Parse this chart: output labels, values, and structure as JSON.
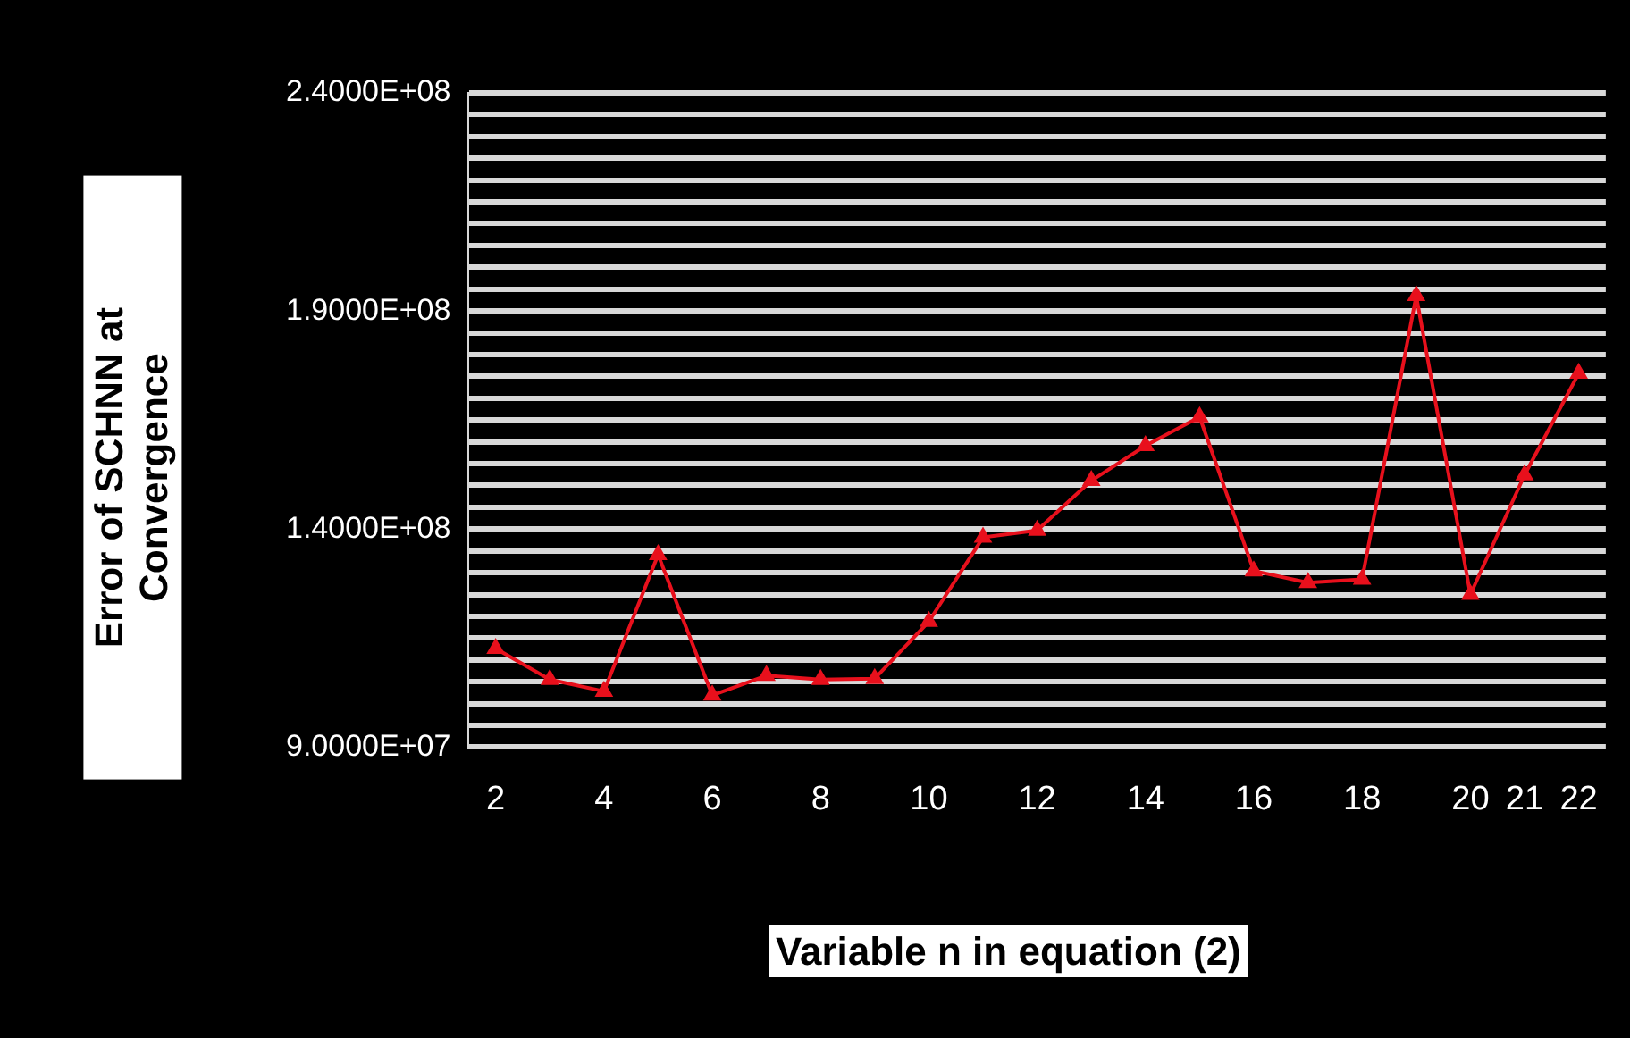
{
  "chart_data": {
    "type": "line",
    "xlabel": "Variable n in equation (2)",
    "ylabel": "Error of SCHNN at Convergence",
    "categories": [
      "2",
      null,
      "4",
      null,
      "6",
      null,
      "8",
      null,
      "10",
      null,
      "12",
      null,
      "14",
      null,
      "16",
      null,
      "18",
      null,
      "20",
      "21",
      "22"
    ],
    "series": [
      {
        "color": "#e8101c",
        "values": [
          112600000,
          105500000,
          102800000,
          134100000,
          101900000,
          106400000,
          105500000,
          105700000,
          118800000,
          138100000,
          139700000,
          151100000,
          159100000,
          165700000,
          130400000,
          127700000,
          128500000,
          193500000,
          125000000,
          152400000,
          175700000
        ]
      }
    ],
    "ylim": [
      90000000,
      240000000
    ],
    "yticks": [
      {
        "value": 90000000,
        "label": "9.0000E+07"
      },
      {
        "value": 95000000,
        "label": null
      },
      {
        "value": 100000000,
        "label": null
      },
      {
        "value": 105000000,
        "label": null
      },
      {
        "value": 110000000,
        "label": null
      },
      {
        "value": 115000000,
        "label": null
      },
      {
        "value": 120000000,
        "label": null
      },
      {
        "value": 125000000,
        "label": null
      },
      {
        "value": 130000000,
        "label": null
      },
      {
        "value": 135000000,
        "label": null
      },
      {
        "value": 140000000,
        "label": "1.4000E+08"
      },
      {
        "value": 145000000,
        "label": null
      },
      {
        "value": 150000000,
        "label": null
      },
      {
        "value": 155000000,
        "label": null
      },
      {
        "value": 160000000,
        "label": null
      },
      {
        "value": 165000000,
        "label": null
      },
      {
        "value": 170000000,
        "label": null
      },
      {
        "value": 175000000,
        "label": null
      },
      {
        "value": 180000000,
        "label": null
      },
      {
        "value": 185000000,
        "label": null
      },
      {
        "value": 190000000,
        "label": "1.9000E+08"
      },
      {
        "value": 195000000,
        "label": null
      },
      {
        "value": 200000000,
        "label": null
      },
      {
        "value": 205000000,
        "label": null
      },
      {
        "value": 210000000,
        "label": null
      },
      {
        "value": 215000000,
        "label": null
      },
      {
        "value": 220000000,
        "label": null
      },
      {
        "value": 225000000,
        "label": null
      },
      {
        "value": 230000000,
        "label": null
      },
      {
        "value": 235000000,
        "label": null
      },
      {
        "value": 240000000,
        "label": "2.4000E+08"
      }
    ],
    "grid": "y",
    "legend": false,
    "marker": "triangle",
    "line_style": "solid"
  }
}
